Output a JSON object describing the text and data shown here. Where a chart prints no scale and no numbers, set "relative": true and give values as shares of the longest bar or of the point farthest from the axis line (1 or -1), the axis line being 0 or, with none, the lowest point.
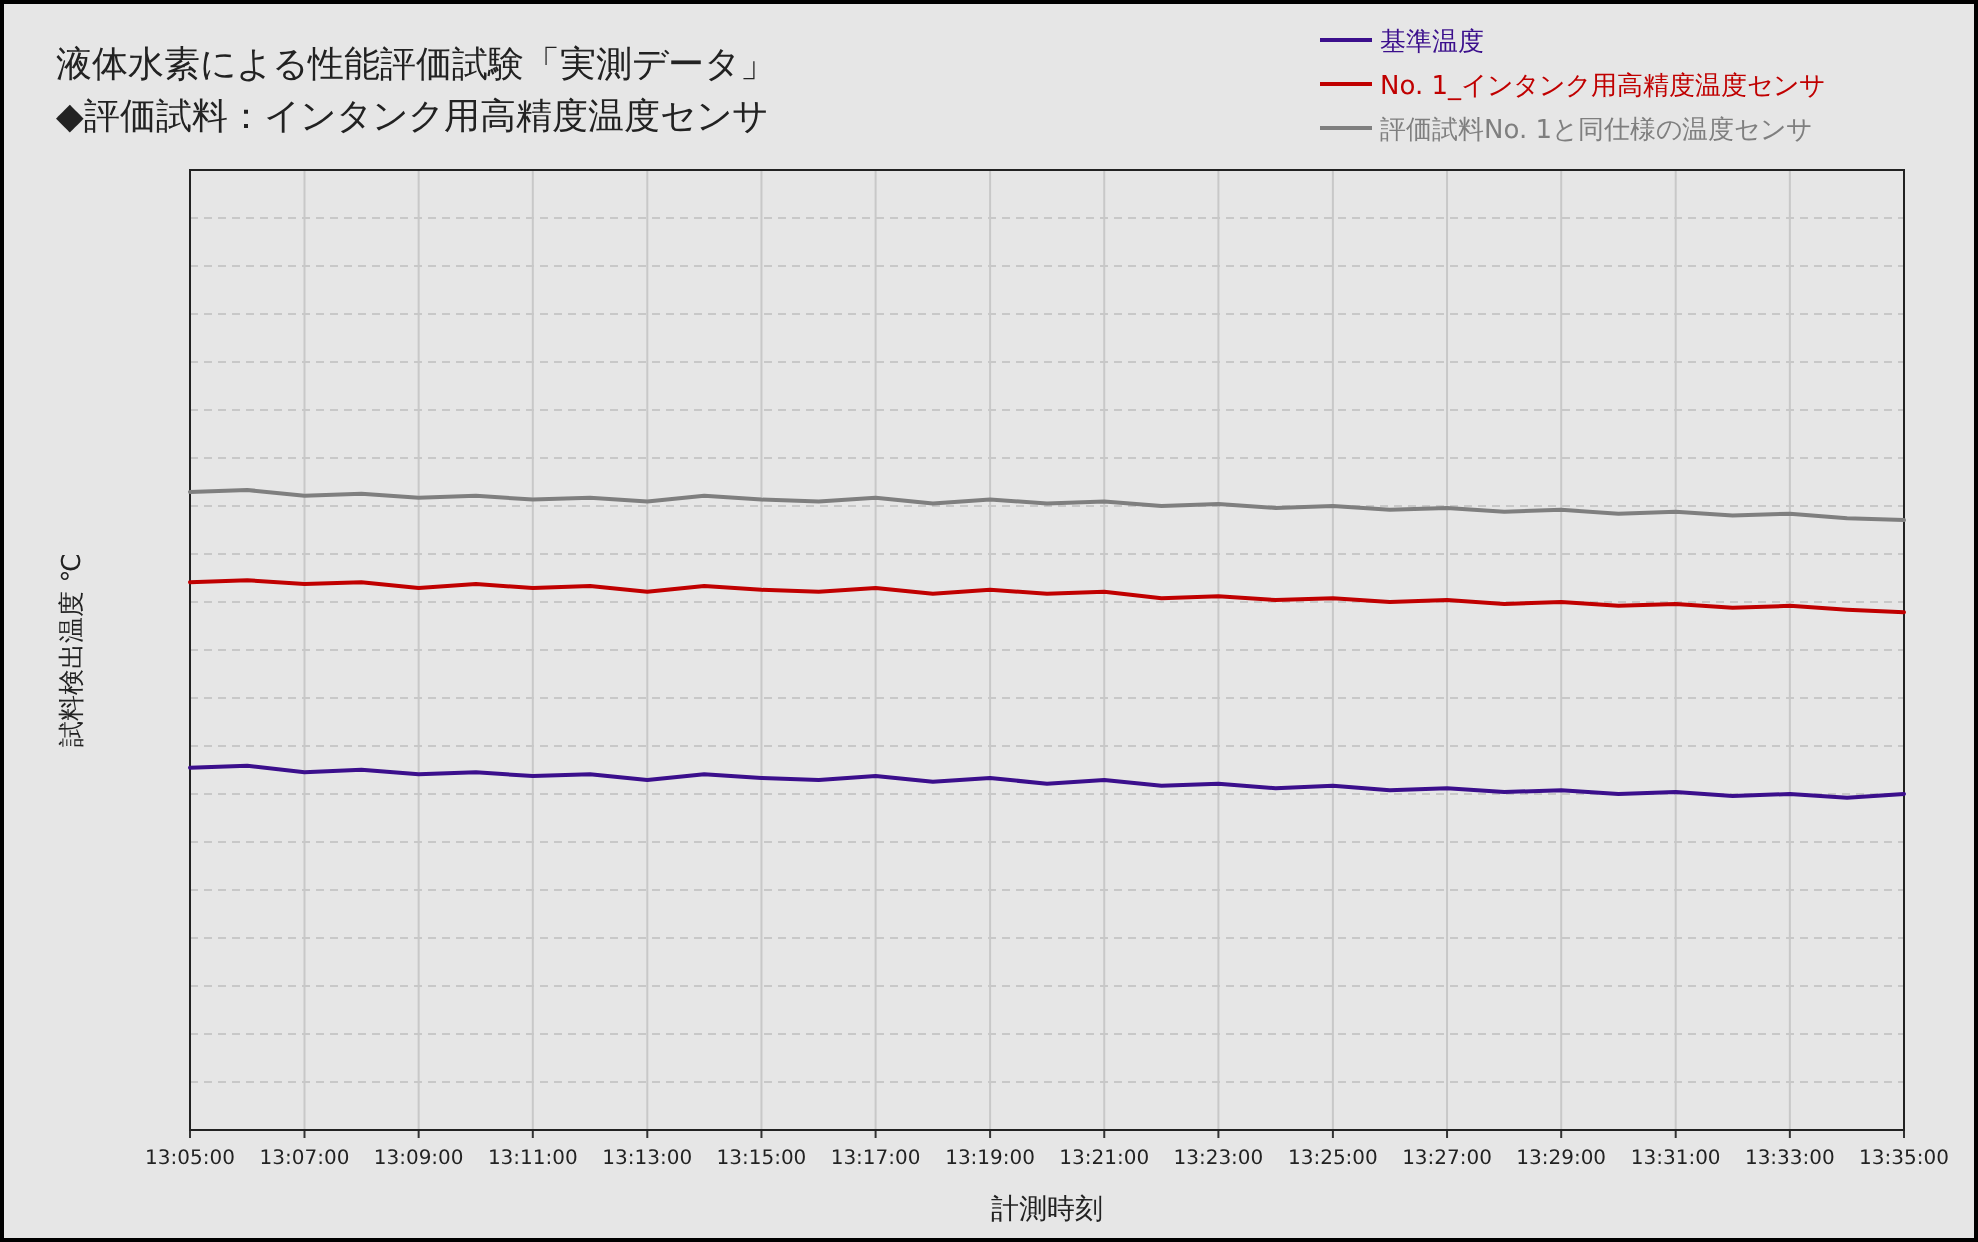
{
  "chart_data": {
    "type": "line",
    "title": "液体水素による性能評価試験「実測データ」",
    "subtitle": "◆評価試料：インタンク用高精度温度センサ",
    "xlabel": "計測時刻",
    "ylabel": "試料検出温度 ℃",
    "relative": true,
    "grid": true,
    "legend": "top right",
    "line_style": "solid",
    "marker": "none",
    "x": [
      13.0833,
      13.1,
      13.1167,
      13.1333,
      13.15,
      13.1667,
      13.1833,
      13.2,
      13.2167,
      13.2333,
      13.25,
      13.2667,
      13.2833,
      13.3,
      13.3167,
      13.3333,
      13.35,
      13.3667,
      13.3833,
      13.4,
      13.4167,
      13.4333,
      13.45,
      13.4667,
      13.4833,
      13.5,
      13.5167,
      13.5333,
      13.55,
      13.5667,
      13.5833
    ],
    "xlim": [
      13.0833,
      13.5833
    ],
    "xticks": [
      {
        "value": 13.0833,
        "label": "13:05:00"
      },
      {
        "value": 13.1167,
        "label": "13:07:00"
      },
      {
        "value": 13.15,
        "label": "13:09:00"
      },
      {
        "value": 13.1833,
        "label": "13:11:00"
      },
      {
        "value": 13.2167,
        "label": "13:13:00"
      },
      {
        "value": 13.25,
        "label": "13:15:00"
      },
      {
        "value": 13.2833,
        "label": "13:17:00"
      },
      {
        "value": 13.3167,
        "label": "13:19:00"
      },
      {
        "value": 13.35,
        "label": "13:21:00"
      },
      {
        "value": 13.3833,
        "label": "13:23:00"
      },
      {
        "value": 13.4167,
        "label": "13:25:00"
      },
      {
        "value": 13.45,
        "label": "13:27:00"
      },
      {
        "value": 13.4833,
        "label": "13:29:00"
      },
      {
        "value": 13.5167,
        "label": "13:31:00"
      },
      {
        "value": 13.55,
        "label": "13:33:00"
      },
      {
        "value": 13.5833,
        "label": "13:35:00"
      }
    ],
    "series": [
      {
        "name": "基準温度",
        "color": "#3b0f8c",
        "values": [
          0.566,
          0.569,
          0.559,
          0.563,
          0.556,
          0.559,
          0.553,
          0.556,
          0.547,
          0.556,
          0.55,
          0.547,
          0.553,
          0.544,
          0.55,
          0.541,
          0.547,
          0.538,
          0.541,
          0.534,
          0.538,
          0.531,
          0.534,
          0.528,
          0.531,
          0.525,
          0.528,
          0.522,
          0.525,
          0.519,
          0.525
        ]
      },
      {
        "name": "No. 1_インタンク用高精度温度センサ",
        "color": "#c00000",
        "values": [
          0.856,
          0.859,
          0.853,
          0.856,
          0.847,
          0.853,
          0.847,
          0.85,
          0.841,
          0.85,
          0.844,
          0.841,
          0.847,
          0.838,
          0.844,
          0.838,
          0.841,
          0.831,
          0.834,
          0.828,
          0.831,
          0.825,
          0.828,
          0.822,
          0.825,
          0.819,
          0.822,
          0.816,
          0.819,
          0.813,
          0.809
        ]
      },
      {
        "name": "評価試料No. 1と同仕様の温度センサ",
        "color": "#7f7f7f",
        "values": [
          0.997,
          1.0,
          0.991,
          0.994,
          0.988,
          0.991,
          0.985,
          0.988,
          0.982,
          0.991,
          0.985,
          0.982,
          0.988,
          0.979,
          0.985,
          0.979,
          0.982,
          0.975,
          0.978,
          0.972,
          0.975,
          0.969,
          0.972,
          0.966,
          0.969,
          0.963,
          0.966,
          0.96,
          0.963,
          0.956,
          0.953
        ]
      }
    ]
  }
}
